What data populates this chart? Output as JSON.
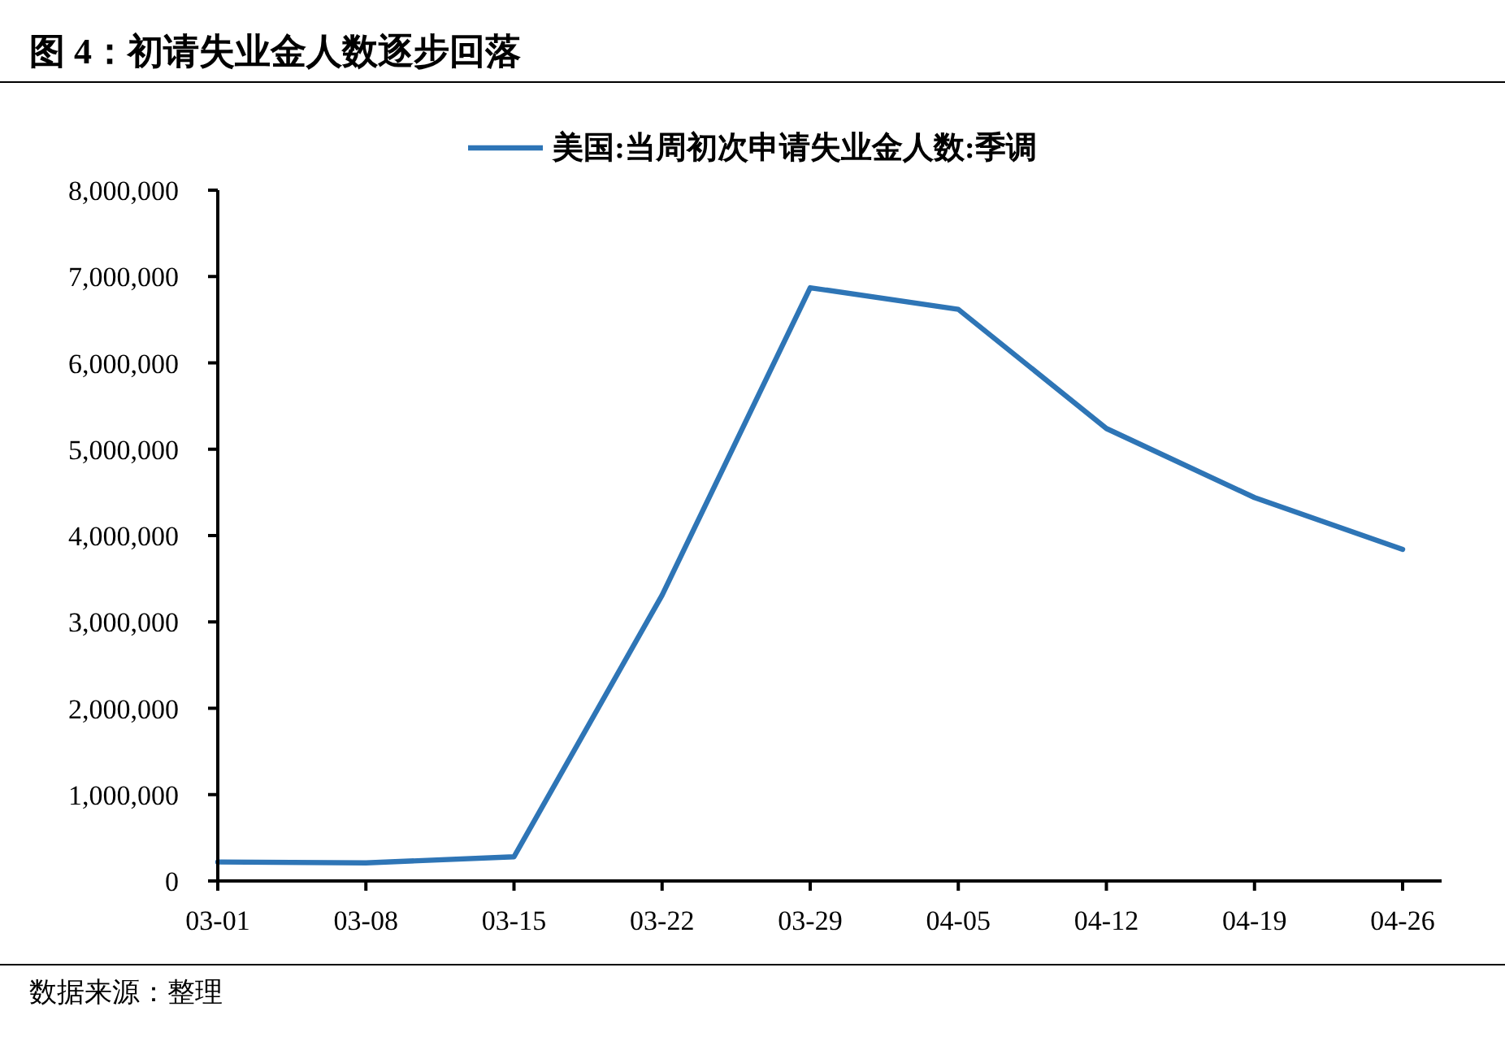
{
  "chart_data": {
    "type": "line",
    "title": "图 4：初请失业金人数逐步回落",
    "categories": [
      "03-01",
      "03-08",
      "03-15",
      "03-22",
      "03-29",
      "04-05",
      "04-12",
      "04-19",
      "04-26"
    ],
    "series": [
      {
        "name": "美国:当周初次申请失业金人数:季调",
        "color": "#2e75b6",
        "values": [
          220000,
          210000,
          280000,
          3310000,
          6870000,
          6620000,
          5240000,
          4440000,
          3840000
        ]
      }
    ],
    "ylim": [
      0,
      8000000
    ],
    "yticks": [
      0,
      {
        "value": 1000000,
        "label": "1,000,000"
      },
      {
        "value": 2000000,
        "label": "2,000,000"
      },
      {
        "value": 3000000,
        "label": "3,000,000"
      },
      {
        "value": 4000000,
        "label": "4,000,000"
      },
      {
        "value": 5000000,
        "label": "5,000,000"
      },
      {
        "value": 6000000,
        "label": "6,000,000"
      },
      {
        "value": 7000000,
        "label": "7,000,000"
      },
      {
        "value": 8000000,
        "label": "8,000,000"
      }
    ],
    "legend": "top",
    "grid": false,
    "marker": "none",
    "line_style": "solid",
    "annotations": [
      "数据来源：整理"
    ]
  }
}
